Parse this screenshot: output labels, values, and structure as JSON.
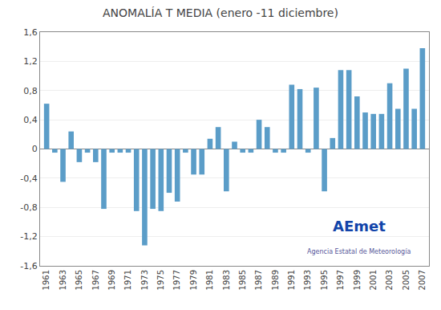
{
  "chart_data": {
    "type": "bar",
    "title": "ANOMALÍA T MEDIA (enero -11 diciembre)",
    "x": [
      1961,
      1962,
      1963,
      1964,
      1965,
      1966,
      1967,
      1968,
      1969,
      1970,
      1971,
      1972,
      1973,
      1974,
      1975,
      1976,
      1977,
      1978,
      1979,
      1980,
      1981,
      1982,
      1983,
      1984,
      1985,
      1986,
      1987,
      1988,
      1989,
      1990,
      1991,
      1992,
      1993,
      1994,
      1995,
      1996,
      1997,
      1998,
      1999,
      2000,
      2001,
      2002,
      2003,
      2004,
      2005,
      2006,
      2007
    ],
    "values": [
      0.62,
      -0.05,
      -0.45,
      0.24,
      -0.18,
      -0.05,
      -0.18,
      -0.82,
      -0.05,
      -0.05,
      -0.05,
      -0.85,
      -1.32,
      -0.82,
      -0.85,
      -0.6,
      -0.72,
      -0.05,
      -0.35,
      -0.35,
      0.14,
      0.3,
      -0.58,
      0.1,
      -0.05,
      -0.05,
      0.4,
      0.3,
      -0.05,
      -0.05,
      0.88,
      0.82,
      -0.05,
      0.84,
      -0.58,
      0.15,
      1.08,
      1.08,
      0.72,
      0.5,
      0.48,
      0.48,
      0.9,
      0.55,
      1.1,
      0.55,
      1.38
    ],
    "color": "#5B9DC8",
    "xlim": [
      1960.2,
      2007.8
    ],
    "xticks": [
      1961,
      1963,
      1965,
      1967,
      1969,
      1971,
      1973,
      1975,
      1977,
      1979,
      1981,
      1983,
      1985,
      1987,
      1989,
      1991,
      1993,
      1995,
      1997,
      1999,
      2001,
      2003,
      2005,
      2007
    ],
    "ylim": [
      -1.6,
      1.6
    ],
    "yticks": [
      {
        "value": -1.6,
        "label": "-1,6"
      },
      {
        "value": -1.2,
        "label": "-1,2"
      },
      {
        "value": -0.8,
        "label": "-0,8"
      },
      {
        "value": -0.4,
        "label": "-0,4"
      },
      0,
      {
        "value": 0.4,
        "label": "0,4"
      },
      {
        "value": 0.8,
        "label": "0,8"
      },
      {
        "value": 1.2,
        "label": "1,2"
      },
      {
        "value": 1.6,
        "label": "1,6"
      }
    ],
    "grid": true,
    "annotations": [
      "AEmet",
      "Agencia Estatal de Meteorología"
    ]
  }
}
